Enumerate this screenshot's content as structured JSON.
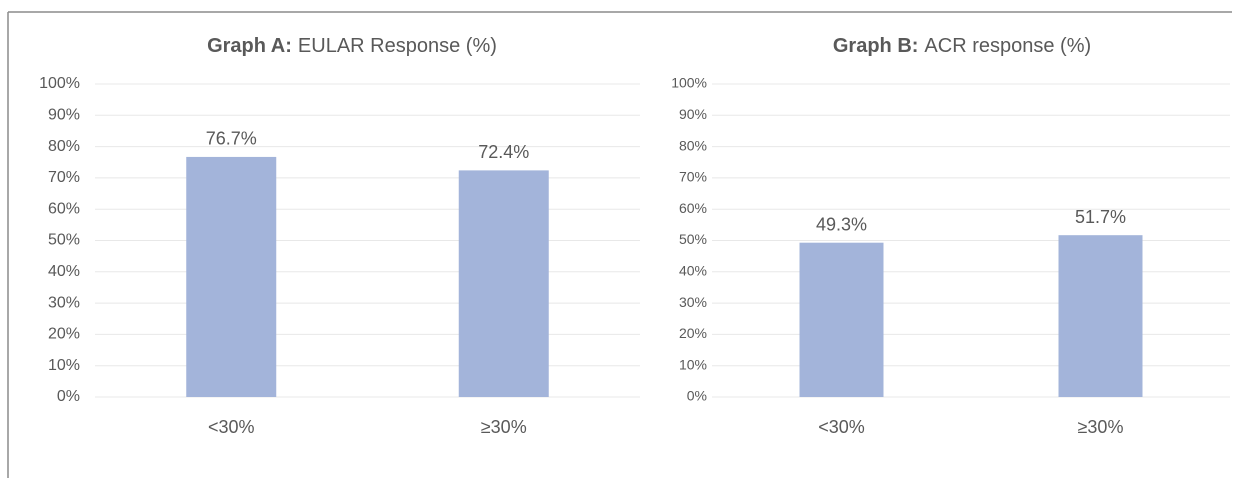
{
  "chart_data": [
    {
      "type": "bar",
      "title_lead": "Graph A:",
      "title": "EULAR Response (%)",
      "categories": [
        "<30%",
        "≥30%"
      ],
      "values": [
        76.7,
        72.4
      ],
      "value_labels": [
        "76.7%",
        "72.4%"
      ],
      "color": "#a3b4da",
      "ylim": [
        0,
        100
      ],
      "yticks": [
        {
          "value": 0,
          "label": "0%"
        },
        {
          "value": 10,
          "label": "10%"
        },
        {
          "value": 20,
          "label": "20%"
        },
        {
          "value": 30,
          "label": "30%"
        },
        {
          "value": 40,
          "label": "40%"
        },
        {
          "value": 50,
          "label": "50%"
        },
        {
          "value": 60,
          "label": "60%"
        },
        {
          "value": 70,
          "label": "70%"
        },
        {
          "value": 80,
          "label": "80%"
        },
        {
          "value": 90,
          "label": "90%"
        },
        {
          "value": 100,
          "label": "100%"
        }
      ],
      "grid": true
    },
    {
      "type": "bar",
      "title_lead": "Graph B:",
      "title": "ACR response (%)",
      "categories": [
        "<30%",
        "≥30%"
      ],
      "values": [
        49.3,
        51.7
      ],
      "value_labels": [
        "49.3%",
        "51.7%"
      ],
      "color": "#a3b4da",
      "ylim": [
        0,
        100
      ],
      "yticks": [
        {
          "value": 0,
          "label": "0%"
        },
        {
          "value": 10,
          "label": "10%"
        },
        {
          "value": 20,
          "label": "20%"
        },
        {
          "value": 30,
          "label": "30%"
        },
        {
          "value": 40,
          "label": "40%"
        },
        {
          "value": 50,
          "label": "50%"
        },
        {
          "value": 60,
          "label": "60%"
        },
        {
          "value": 70,
          "label": "70%"
        },
        {
          "value": 80,
          "label": "80%"
        },
        {
          "value": 90,
          "label": "90%"
        },
        {
          "value": 100,
          "label": "100%"
        }
      ],
      "grid": true
    }
  ]
}
